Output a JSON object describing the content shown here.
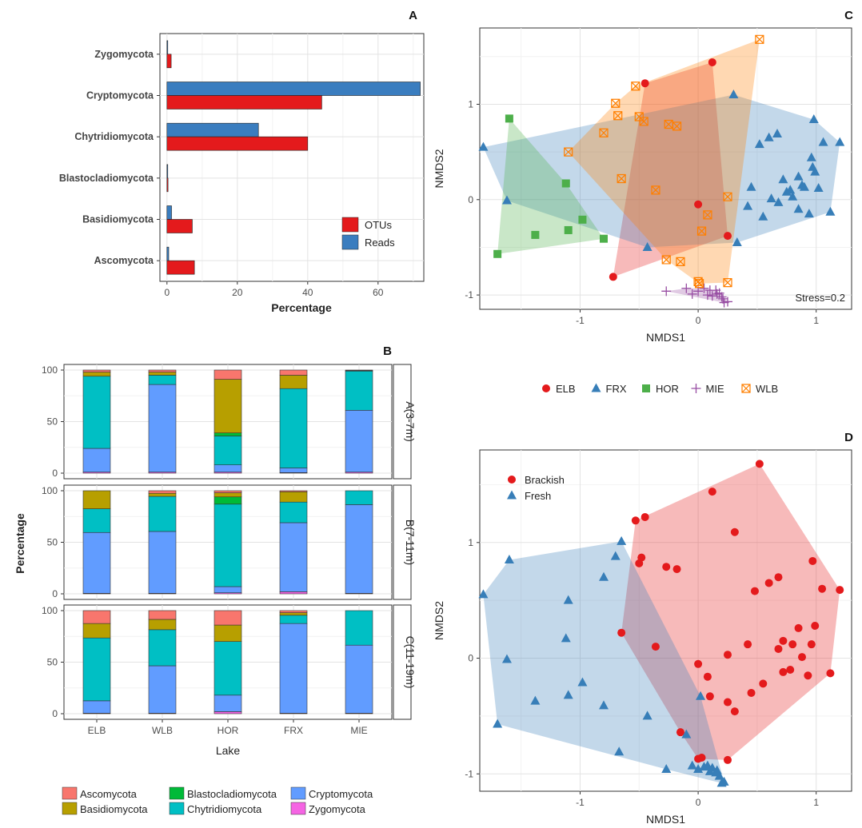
{
  "panels": {
    "a": "A",
    "b": "B",
    "c": "C",
    "d": "D"
  },
  "colors": {
    "reads": "#3a7dbf",
    "otus": "#e41a1c",
    "elb": "#e41a1c",
    "frx": "#377eb8",
    "hor": "#4daf4a",
    "mie": "#984ea3",
    "wlb": "#ff7f00",
    "ascomycota": "#f8766d",
    "basidiomycota": "#b79f00",
    "blastocladiomycota": "#00ba38",
    "chytridiomycota": "#00bfc4",
    "cryptomycota": "#619cff",
    "zygomycota": "#f564e3",
    "brackish": "#e41a1c",
    "fresh": "#377eb8"
  },
  "chart_data": [
    {
      "id": "A",
      "type": "bar",
      "orientation": "horizontal",
      "categories": [
        "Zygomycota",
        "Cryptomycota",
        "Chytridiomycota",
        "Blastocladiomycota",
        "Basidiomycota",
        "Ascomycota"
      ],
      "series": [
        {
          "name": "Reads",
          "values": [
            0.2,
            72,
            26,
            0.2,
            1.3,
            0.5
          ]
        },
        {
          "name": "OTUs",
          "values": [
            1.2,
            44,
            40,
            0.3,
            7.2,
            7.8
          ]
        }
      ],
      "legend_order": [
        "OTUs",
        "Reads"
      ],
      "xlabel": "Percentage",
      "xlim": [
        -2,
        73
      ],
      "xticks": [
        "0",
        "20",
        "40",
        "60"
      ],
      "legend_position": "bottom-right"
    },
    {
      "id": "B",
      "type": "bar",
      "stacked": true,
      "categories": [
        "ELB",
        "WLB",
        "HOR",
        "FRX",
        "MIE"
      ],
      "xlabel": "Lake",
      "ylabel": "Percentage",
      "ylim": [
        0,
        100
      ],
      "yticks": [
        "0",
        "50",
        "100"
      ],
      "stack_order": [
        "Zygomycota",
        "Cryptomycota",
        "Chytridiomycota",
        "Blastocladiomycota",
        "Basidiomycota",
        "Ascomycota"
      ],
      "facets": [
        {
          "label": "A(3-7m)",
          "values": {
            "Zygomycota": [
              1,
              1,
              1,
              0.5,
              1
            ],
            "Cryptomycota": [
              23,
              85,
              7,
              4.5,
              60
            ],
            "Chytridiomycota": [
              70,
              9,
              28,
              77,
              38
            ],
            "Blastocladiomycota": [
              0,
              0,
              3,
              0,
              0
            ],
            "Basidiomycota": [
              4,
              3,
              52,
              13,
              0.5
            ],
            "Ascomycota": [
              2,
              2,
              9,
              5,
              0.5
            ]
          }
        },
        {
          "label": "B(7-11m)",
          "values": {
            "Zygomycota": [
              0.5,
              0.5,
              1,
              2,
              0.5
            ],
            "Cryptomycota": [
              59,
              60,
              6,
              67,
              86
            ],
            "Chytridiomycota": [
              23,
              34,
              80,
              20,
              13.5
            ],
            "Blastocladiomycota": [
              0,
              0,
              7,
              0,
              0
            ],
            "Basidiomycota": [
              17.5,
              3,
              4,
              10,
              0
            ],
            "Ascomycota": [
              0,
              2.5,
              2,
              1,
              0
            ]
          }
        },
        {
          "label": "C(11-19m)",
          "values": {
            "Zygomycota": [
              0.5,
              0.5,
              2,
              0.5,
              0.5
            ],
            "Cryptomycota": [
              12,
              46,
              16,
              87,
              66
            ],
            "Chytridiomycota": [
              61,
              35,
              52,
              8,
              33.5
            ],
            "Blastocladiomycota": [
              0,
              0,
              0,
              0,
              0
            ],
            "Basidiomycota": [
              14,
              10,
              16,
              2.5,
              0
            ],
            "Ascomycota": [
              12.5,
              8.5,
              14,
              2,
              0
            ]
          }
        }
      ],
      "legend": [
        "Ascomycota",
        "Blastocladiomycota",
        "Cryptomycota",
        "Basidiomycota",
        "Chytridiomycota",
        "Zygomycota"
      ]
    },
    {
      "id": "C",
      "type": "scatter",
      "xlabel": "NMDS1",
      "ylabel": "NMDS2",
      "xlim": [
        -1.85,
        1.3
      ],
      "ylim": [
        -1.15,
        1.8
      ],
      "xticks": [
        -1,
        0,
        1
      ],
      "yticks": [
        -1,
        0,
        1
      ],
      "annotation": "Stress=0.2",
      "series": [
        {
          "name": "ELB",
          "marker": "circle",
          "x": [
            -0.45,
            0.12,
            -0.72,
            0.0,
            0.25
          ],
          "y": [
            1.22,
            1.44,
            -0.81,
            -0.05,
            -0.38
          ]
        },
        {
          "name": "FRX",
          "marker": "triangle",
          "x": [
            -1.82,
            0.3,
            0.98,
            1.2,
            1.12,
            -1.62,
            -0.43,
            0.33,
            0.45,
            0.52,
            0.6,
            0.67,
            0.72,
            0.85,
            0.78,
            0.9,
            0.96,
            0.99,
            1.02,
            1.06,
            0.94,
            0.55,
            0.68,
            0.8,
            0.88,
            0.97,
            0.42,
            0.62,
            0.75,
            0.85
          ],
          "y": [
            0.55,
            1.1,
            0.84,
            0.6,
            -0.13,
            -0.01,
            -0.5,
            -0.45,
            0.13,
            0.58,
            0.65,
            0.69,
            0.21,
            0.24,
            0.1,
            0.13,
            0.44,
            0.29,
            0.12,
            0.6,
            -0.15,
            -0.18,
            -0.03,
            0.03,
            0.15,
            0.34,
            -0.07,
            0.01,
            0.08,
            -0.1
          ]
        },
        {
          "name": "HOR",
          "marker": "square",
          "x": [
            -1.6,
            -1.7,
            -1.38,
            -1.12,
            -1.1,
            -0.98,
            -0.8
          ],
          "y": [
            0.85,
            -0.57,
            -0.37,
            0.17,
            -0.32,
            -0.21,
            -0.41
          ]
        },
        {
          "name": "MIE",
          "marker": "plus",
          "x": [
            -0.27,
            -0.1,
            0.0,
            0.05,
            0.1,
            0.15,
            0.18,
            0.2,
            0.22,
            0.25,
            -0.05,
            0.08,
            0.12,
            0.16,
            0.21
          ],
          "y": [
            -0.96,
            -0.93,
            -0.96,
            -0.93,
            -0.95,
            -0.95,
            -0.98,
            -1.02,
            -1.08,
            -1.07,
            -0.99,
            -1.0,
            -1.01,
            -0.99,
            -1.04
          ]
        },
        {
          "name": "WLB",
          "marker": "boxx",
          "x": [
            0.52,
            -0.53,
            -0.7,
            -0.5,
            -0.68,
            -0.25,
            -0.18,
            -0.46,
            -0.8,
            -1.1,
            -0.65,
            -0.36,
            0.25,
            0.08,
            0.03,
            0.0,
            -0.15,
            -0.27,
            0.25,
            0.01
          ],
          "y": [
            1.68,
            1.19,
            1.01,
            0.87,
            0.88,
            0.79,
            0.77,
            0.82,
            0.7,
            0.5,
            0.22,
            0.1,
            0.03,
            -0.16,
            -0.33,
            -0.86,
            -0.65,
            -0.63,
            -0.87,
            -0.88
          ]
        }
      ],
      "legend_position": "bottom"
    },
    {
      "id": "D",
      "type": "scatter",
      "xlabel": "NMDS1",
      "ylabel": "NMDS2",
      "xlim": [
        -1.85,
        1.3
      ],
      "ylim": [
        -1.15,
        1.8
      ],
      "xticks": [
        -1,
        0,
        1
      ],
      "yticks": [
        -1,
        0,
        1
      ],
      "series": [
        {
          "name": "Brackish",
          "marker": "circle",
          "x": [
            0.52,
            0.12,
            -0.45,
            -0.53,
            -0.48,
            -0.5,
            -0.27,
            -0.18,
            0.31,
            0.6,
            0.68,
            0.97,
            1.2,
            1.12,
            0.99,
            0.85,
            0.8,
            0.72,
            0.68,
            0.48,
            0.42,
            0.25,
            0.08,
            0.0,
            -0.15,
            -0.36,
            -0.65,
            0.25,
            0.31,
            0.45,
            0.55,
            0.72,
            0.88,
            0.96,
            1.05,
            0.93,
            0.78,
            0.0,
            0.1,
            0.25,
            0.03
          ],
          "y": [
            1.68,
            1.44,
            1.22,
            1.19,
            0.87,
            0.82,
            0.79,
            0.77,
            1.09,
            0.65,
            0.7,
            0.84,
            0.59,
            -0.13,
            0.28,
            0.26,
            0.12,
            0.15,
            0.08,
            0.58,
            0.12,
            0.03,
            -0.16,
            -0.05,
            -0.64,
            0.1,
            0.22,
            -0.38,
            -0.46,
            -0.3,
            -0.22,
            -0.12,
            0.01,
            0.12,
            0.6,
            -0.15,
            -0.1,
            -0.87,
            -0.33,
            -0.88,
            -0.86
          ]
        },
        {
          "name": "Fresh",
          "marker": "triangle",
          "x": [
            -0.65,
            -0.7,
            -0.8,
            -1.1,
            -1.82,
            -1.6,
            -1.62,
            -1.1,
            -1.7,
            -1.38,
            -0.98,
            -1.12,
            -0.43,
            -0.8,
            -0.67,
            -0.27,
            -0.05,
            0.0,
            0.02,
            0.05,
            0.08,
            0.12,
            0.15,
            0.18,
            0.2,
            0.22,
            -0.1,
            0.1,
            0.16
          ],
          "y": [
            1.01,
            0.88,
            0.7,
            0.5,
            0.55,
            0.85,
            -0.01,
            -0.32,
            -0.57,
            -0.37,
            -0.21,
            0.17,
            -0.5,
            -0.41,
            -0.81,
            -0.96,
            -0.93,
            -0.96,
            -0.33,
            -0.94,
            -0.93,
            -0.95,
            -0.99,
            -1.02,
            -1.08,
            -1.07,
            -0.66,
            -0.98,
            -0.97
          ]
        }
      ],
      "legend_position": "top-left"
    }
  ]
}
